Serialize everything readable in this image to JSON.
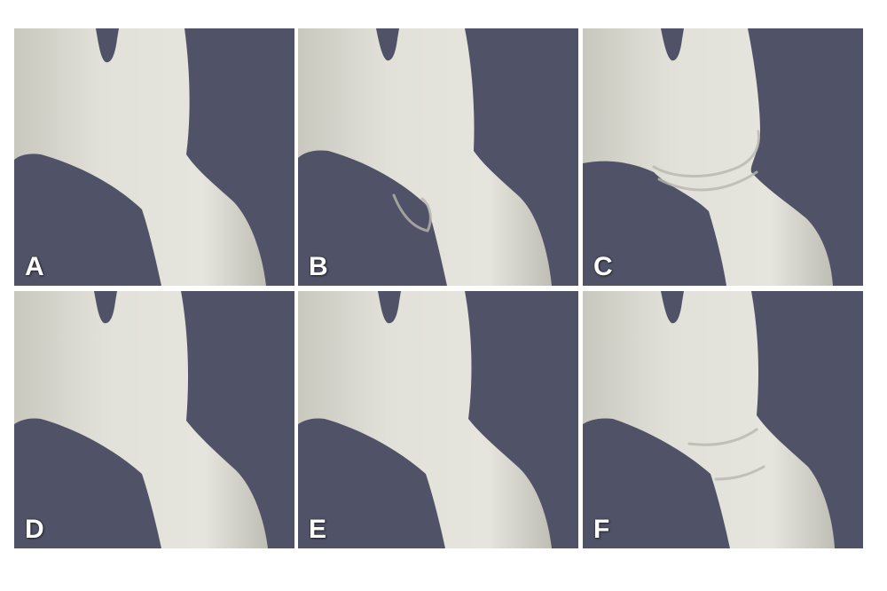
{
  "figure": {
    "background_color": "#505368",
    "surface_color": "#e2e1d9",
    "panels": [
      {
        "label": "A"
      },
      {
        "label": "B"
      },
      {
        "label": "C"
      },
      {
        "label": "D"
      },
      {
        "label": "E"
      },
      {
        "label": "F"
      }
    ]
  }
}
